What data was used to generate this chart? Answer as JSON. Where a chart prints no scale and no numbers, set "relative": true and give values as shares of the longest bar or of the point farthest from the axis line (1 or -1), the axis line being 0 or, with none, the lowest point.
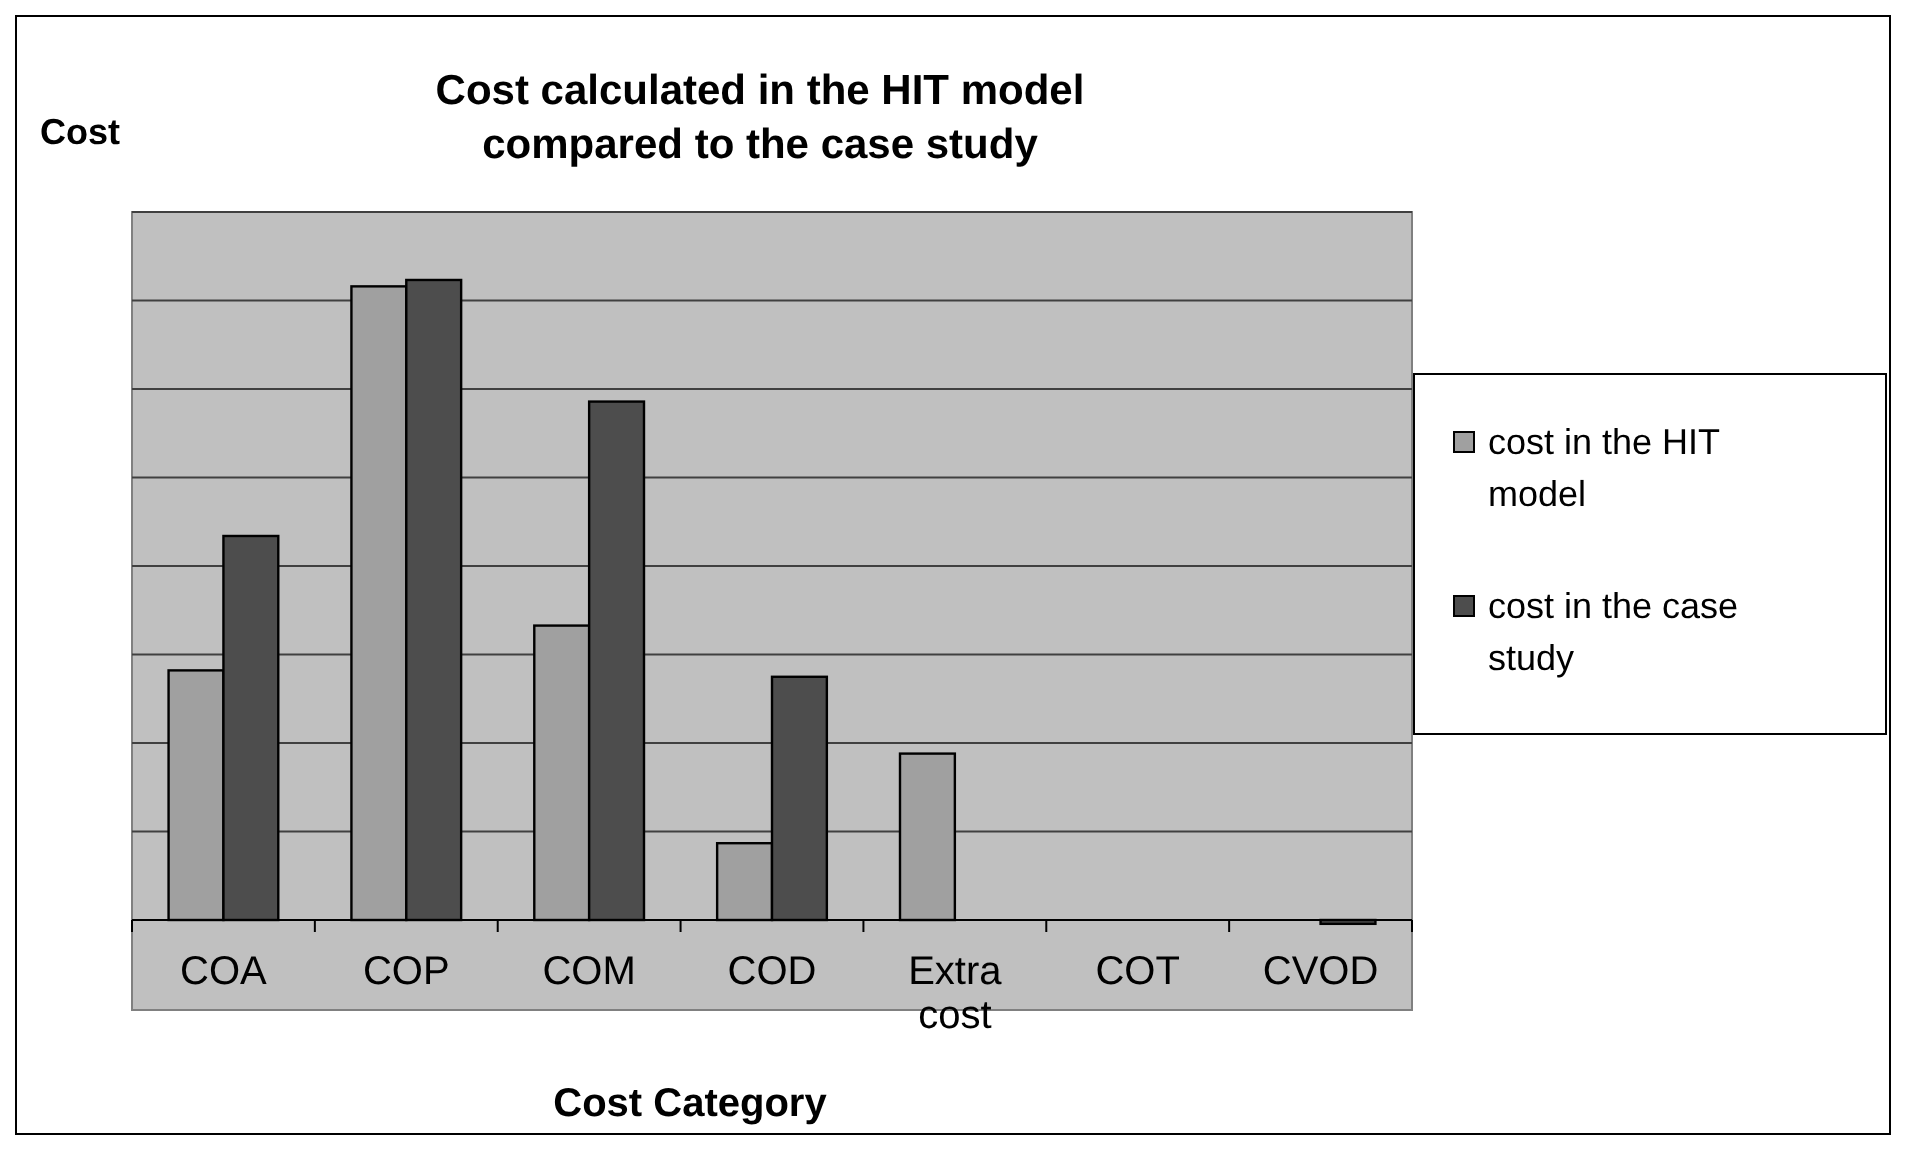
{
  "chart_data": {
    "type": "bar",
    "title": "Cost calculated in the HIT model\ncompared to the case study",
    "ylabel": "Cost",
    "xlabel": "Cost Category",
    "relative": true,
    "grid": true,
    "legend": "right",
    "categories": [
      "COA",
      "COP",
      "COM",
      "COD",
      "Extra cost",
      "COT",
      "CVOD"
    ],
    "series": [
      {
        "name": "cost in the HIT model",
        "color": "#a0a0a0",
        "values": [
          0.39,
          0.99,
          0.46,
          0.12,
          0.26,
          0,
          0
        ]
      },
      {
        "name": "cost in the case study",
        "color": "#4d4d4d",
        "values": [
          0.6,
          1,
          0.81,
          0.38,
          0,
          0,
          -0.006
        ]
      }
    ]
  }
}
